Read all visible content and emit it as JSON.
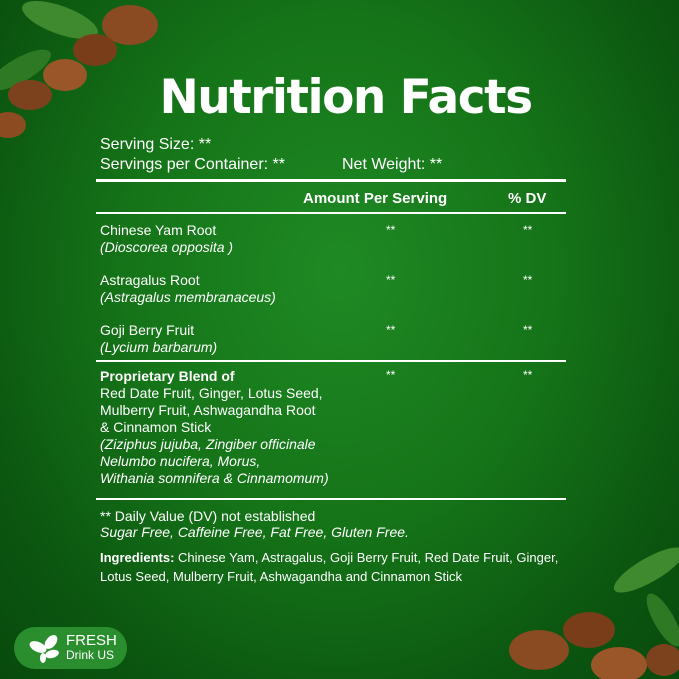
{
  "title": "Nutrition Facts",
  "serving_size": "Serving Size: **",
  "servings_per_container": "Servings per Container: **",
  "net_weight": "Net Weight: **",
  "columns": {
    "amount": "Amount Per Serving",
    "dv": "% DV"
  },
  "rows": [
    {
      "name": "Chinese Yam Root",
      "latin": "(Dioscorea opposita )",
      "amount": "**",
      "dv": "**"
    },
    {
      "name": "Astragalus Root",
      "latin": "(Astragalus membranaceus)",
      "amount": "**",
      "dv": "**"
    },
    {
      "name": "Goji Berry Fruit",
      "latin": "(Lycium barbarum)",
      "amount": "**",
      "dv": "**"
    }
  ],
  "blend": {
    "title": "Proprietary Blend of",
    "lines": [
      "Red Date Fruit, Ginger, Lotus Seed,",
      "Mulberry Fruit, Ashwagandha Root",
      "& Cinnamon Stick"
    ],
    "latin": [
      "(Ziziphus jujuba, Zingiber officinale",
      "Nelumbo nucifera, Morus,",
      "Withania somnifera & Cinnamomum)"
    ],
    "amount": "**",
    "dv": "**"
  },
  "footnote": "** Daily Value (DV) not established",
  "claims": "Sugar Free, Caffeine Free, Fat Free, Gluten Free.",
  "ingredients": {
    "label": "Ingredients:",
    "text": " Chinese Yam, Astragalus, Goji Berry Fruit, Red Date Fruit, Ginger, Lotus Seed, Mulberry Fruit, Ashwagandha and Cinnamon Stick"
  },
  "logo": {
    "line1": "FRESH",
    "line2": "Drink US"
  }
}
